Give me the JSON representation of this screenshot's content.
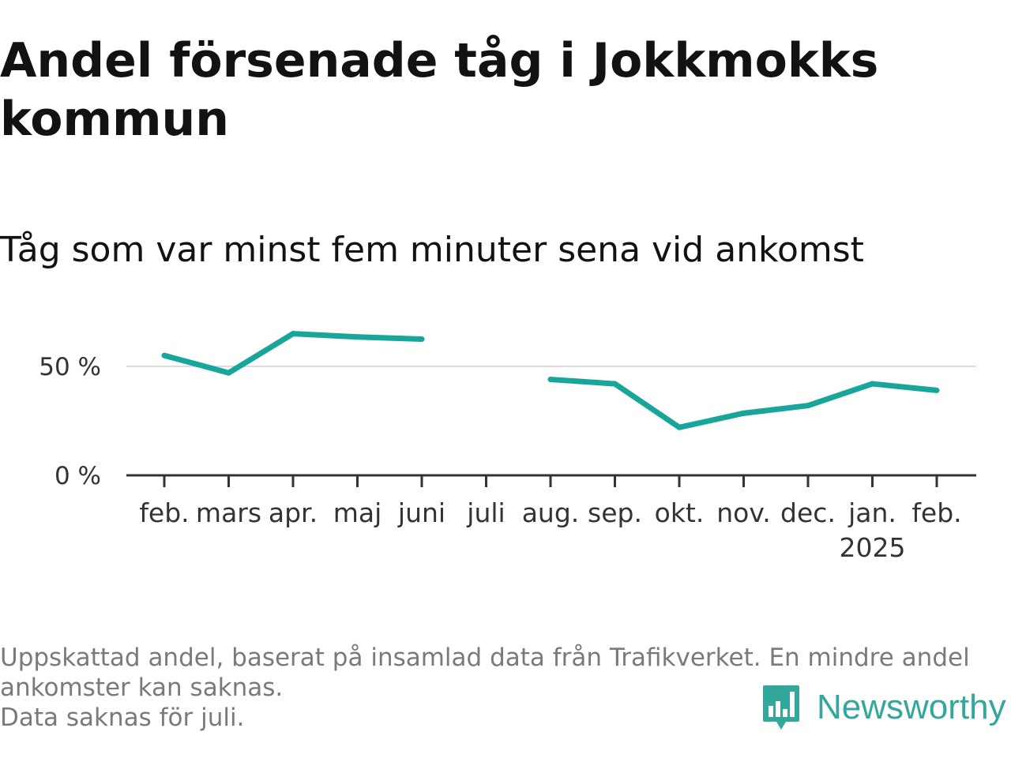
{
  "title": "Andel försenade tåg i Jokkmokks kommun",
  "subtitle": "Tåg som var minst fem minuter sena vid ankomst",
  "chart_data": {
    "type": "line",
    "categories": [
      "feb.",
      "mars",
      "apr.",
      "maj",
      "juni",
      "juli",
      "aug.",
      "sep.",
      "okt.",
      "nov.",
      "dec.",
      "jan.",
      "feb."
    ],
    "category_sublabels": [
      "",
      "",
      "",
      "",
      "",
      "",
      "",
      "",
      "",
      "",
      "",
      "2025",
      ""
    ],
    "series": [
      {
        "values": [
          55,
          47,
          65,
          63.5,
          62.5,
          null,
          44,
          42,
          22,
          28.5,
          32,
          42,
          39
        ]
      }
    ],
    "y_ticks": [
      {
        "value": 0,
        "label": "0 %"
      },
      {
        "value": 50,
        "label": "50 %"
      }
    ],
    "ylim": [
      0,
      75
    ],
    "grid": true,
    "colors": {
      "line": "#18a59a",
      "grid": "#dddddd",
      "axis": "#333333"
    }
  },
  "footer": {
    "note_lines": [
      "Uppskattad andel, baserat på insamlad data från Trafikverket. En mindre andel",
      "ankomster kan saknas.",
      "Data saknas för juli."
    ]
  },
  "brand": {
    "name": "Newsworthy",
    "icon": "newsworthy-logo-icon",
    "color": "#34a79c"
  }
}
